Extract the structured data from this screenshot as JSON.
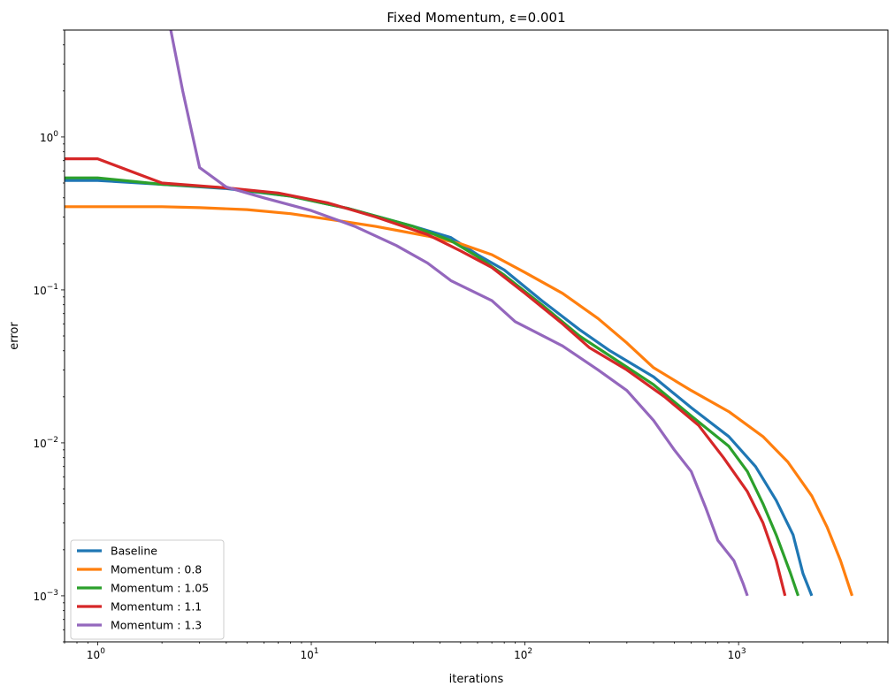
{
  "chart_data": {
    "type": "line",
    "title": "Fixed Momentum, ε=0.001",
    "xlabel": "iterations",
    "ylabel": "error",
    "x_scale": "log",
    "y_scale": "log",
    "xlim": [
      0.7,
      5000
    ],
    "ylim": [
      0.0005,
      5
    ],
    "x_ticks": [
      {
        "value": 1,
        "base": "10",
        "exp": "0"
      },
      {
        "value": 10,
        "base": "10",
        "exp": "1"
      },
      {
        "value": 100,
        "base": "10",
        "exp": "2"
      },
      {
        "value": 1000,
        "base": "10",
        "exp": "3"
      }
    ],
    "y_ticks": [
      {
        "value": 0.001,
        "base": "10",
        "exp": "−3"
      },
      {
        "value": 0.01,
        "base": "10",
        "exp": "−2"
      },
      {
        "value": 0.1,
        "base": "10",
        "exp": "−1"
      },
      {
        "value": 1,
        "base": "10",
        "exp": "0"
      }
    ],
    "grid": false,
    "legend_position": "lower-left",
    "series": [
      {
        "name": "Baseline",
        "color": "#1f77b4",
        "points": [
          [
            0.7,
            0.52
          ],
          [
            1,
            0.52
          ],
          [
            2,
            0.49
          ],
          [
            4,
            0.46
          ],
          [
            8,
            0.41
          ],
          [
            15,
            0.34
          ],
          [
            30,
            0.26
          ],
          [
            45,
            0.22
          ],
          [
            60,
            0.17
          ],
          [
            80,
            0.135
          ],
          [
            120,
            0.085
          ],
          [
            180,
            0.055
          ],
          [
            250,
            0.04
          ],
          [
            400,
            0.027
          ],
          [
            600,
            0.017
          ],
          [
            900,
            0.011
          ],
          [
            1200,
            0.007
          ],
          [
            1500,
            0.0042
          ],
          [
            1800,
            0.0025
          ],
          [
            2000,
            0.0014
          ],
          [
            2200,
            0.001
          ]
        ]
      },
      {
        "name": "Momentum : 0.8",
        "color": "#ff7f0e",
        "points": [
          [
            0.7,
            0.35
          ],
          [
            1,
            0.35
          ],
          [
            2,
            0.35
          ],
          [
            3,
            0.345
          ],
          [
            5,
            0.335
          ],
          [
            8,
            0.315
          ],
          [
            12,
            0.29
          ],
          [
            20,
            0.26
          ],
          [
            35,
            0.225
          ],
          [
            50,
            0.2
          ],
          [
            70,
            0.17
          ],
          [
            100,
            0.13
          ],
          [
            150,
            0.095
          ],
          [
            220,
            0.065
          ],
          [
            300,
            0.045
          ],
          [
            400,
            0.031
          ],
          [
            600,
            0.022
          ],
          [
            900,
            0.016
          ],
          [
            1300,
            0.011
          ],
          [
            1700,
            0.0075
          ],
          [
            2200,
            0.0045
          ],
          [
            2600,
            0.0028
          ],
          [
            3000,
            0.0017
          ],
          [
            3400,
            0.001
          ]
        ]
      },
      {
        "name": "Momentum : 1.05",
        "color": "#2ca02c",
        "points": [
          [
            0.7,
            0.54
          ],
          [
            1,
            0.54
          ],
          [
            2,
            0.49
          ],
          [
            4,
            0.465
          ],
          [
            8,
            0.41
          ],
          [
            15,
            0.34
          ],
          [
            30,
            0.26
          ],
          [
            45,
            0.21
          ],
          [
            60,
            0.165
          ],
          [
            80,
            0.125
          ],
          [
            120,
            0.08
          ],
          [
            180,
            0.05
          ],
          [
            250,
            0.037
          ],
          [
            400,
            0.024
          ],
          [
            600,
            0.015
          ],
          [
            900,
            0.0095
          ],
          [
            1100,
            0.0065
          ],
          [
            1300,
            0.004
          ],
          [
            1500,
            0.0025
          ],
          [
            1750,
            0.0014
          ],
          [
            1900,
            0.001
          ]
        ]
      },
      {
        "name": "Momentum : 1.1",
        "color": "#d62728",
        "points": [
          [
            0.7,
            0.72
          ],
          [
            1,
            0.72
          ],
          [
            2,
            0.5
          ],
          [
            4,
            0.465
          ],
          [
            7,
            0.43
          ],
          [
            12,
            0.37
          ],
          [
            20,
            0.3
          ],
          [
            35,
            0.23
          ],
          [
            50,
            0.18
          ],
          [
            70,
            0.14
          ],
          [
            100,
            0.095
          ],
          [
            150,
            0.06
          ],
          [
            200,
            0.042
          ],
          [
            300,
            0.03
          ],
          [
            450,
            0.02
          ],
          [
            650,
            0.013
          ],
          [
            850,
            0.008
          ],
          [
            1100,
            0.0048
          ],
          [
            1300,
            0.003
          ],
          [
            1500,
            0.0017
          ],
          [
            1650,
            0.001
          ]
        ]
      },
      {
        "name": "Momentum : 1.3",
        "color": "#9467bd",
        "points": [
          [
            2.2,
            5
          ],
          [
            2.5,
            2.0
          ],
          [
            3,
            0.63
          ],
          [
            4,
            0.47
          ],
          [
            6,
            0.4
          ],
          [
            10,
            0.33
          ],
          [
            16,
            0.26
          ],
          [
            25,
            0.195
          ],
          [
            35,
            0.15
          ],
          [
            45,
            0.115
          ],
          [
            70,
            0.085
          ],
          [
            90,
            0.062
          ],
          [
            150,
            0.043
          ],
          [
            220,
            0.03
          ],
          [
            300,
            0.022
          ],
          [
            400,
            0.014
          ],
          [
            500,
            0.009
          ],
          [
            600,
            0.0065
          ],
          [
            700,
            0.0038
          ],
          [
            800,
            0.0023
          ],
          [
            950,
            0.0017
          ],
          [
            1050,
            0.0012
          ],
          [
            1100,
            0.001
          ]
        ]
      }
    ]
  }
}
